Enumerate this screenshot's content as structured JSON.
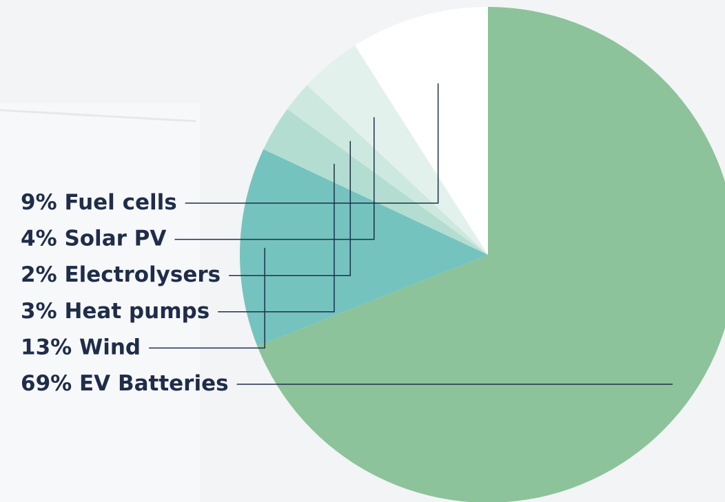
{
  "chart_data": {
    "type": "pie",
    "categories": [
      "Fuel cells",
      "Solar PV",
      "Electrolysers",
      "Heat pumps",
      "Wind",
      "EV Batteries"
    ],
    "values": [
      9,
      4,
      2,
      3,
      13,
      69
    ],
    "value_labels": [
      "9%",
      "4%",
      "2%",
      "3%",
      "13%",
      "69%"
    ],
    "colors": [
      "#ffffff",
      "#e3f1ec",
      "#cde9df",
      "#b3ddd0",
      "#74c3bf",
      "#8cc39a"
    ]
  }
}
